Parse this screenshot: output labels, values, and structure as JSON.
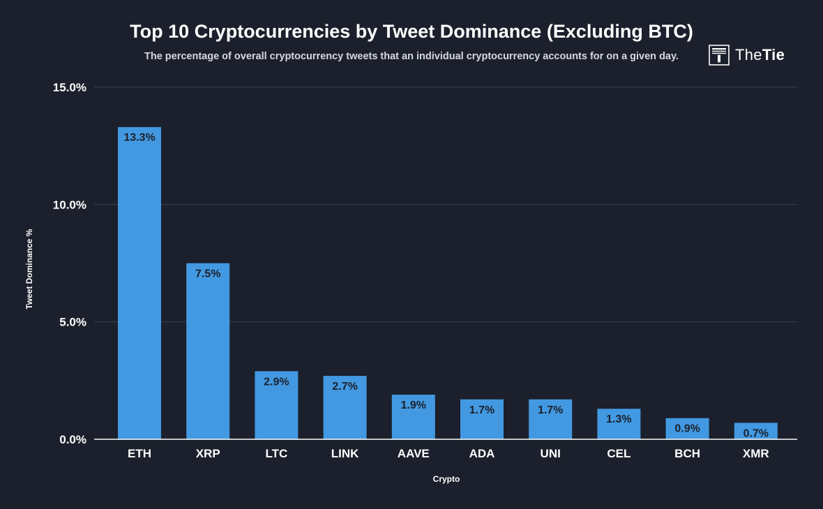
{
  "header": {
    "title": "Top 10 Cryptocurrencies by Tweet Dominance (Excluding BTC)",
    "subtitle": "The percentage of overall cryptocurrency tweets that an individual cryptocurrency accounts for on a given day."
  },
  "logo": {
    "brand_light": "The",
    "brand_bold": "Tie",
    "icon": "thetie-logo-icon"
  },
  "colors": {
    "background": "#1b202c",
    "bar": "#4299e1",
    "grid": "#3a4050",
    "axis": "#ffffff",
    "label_text": "#1b202c"
  },
  "chart_data": {
    "type": "bar",
    "title": "Top 10 Cryptocurrencies by Tweet Dominance (Excluding BTC)",
    "xlabel": "Crypto",
    "ylabel": "Tweet Dominance %",
    "categories": [
      "ETH",
      "XRP",
      "LTC",
      "LINK",
      "AAVE",
      "ADA",
      "UNI",
      "CEL",
      "BCH",
      "XMR"
    ],
    "values": [
      13.3,
      7.5,
      2.9,
      2.7,
      1.9,
      1.7,
      1.7,
      1.3,
      0.9,
      0.7
    ],
    "data_labels": [
      "13.3%",
      "7.5%",
      "2.9%",
      "2.7%",
      "1.9%",
      "1.7%",
      "1.7%",
      "1.3%",
      "0.9%",
      "0.7%"
    ],
    "yticks": [
      0,
      5,
      10,
      15
    ],
    "ytick_labels": [
      "0.0%",
      "5.0%",
      "10.0%",
      "15.0%"
    ],
    "ylim": [
      0,
      15
    ],
    "grid": true
  }
}
